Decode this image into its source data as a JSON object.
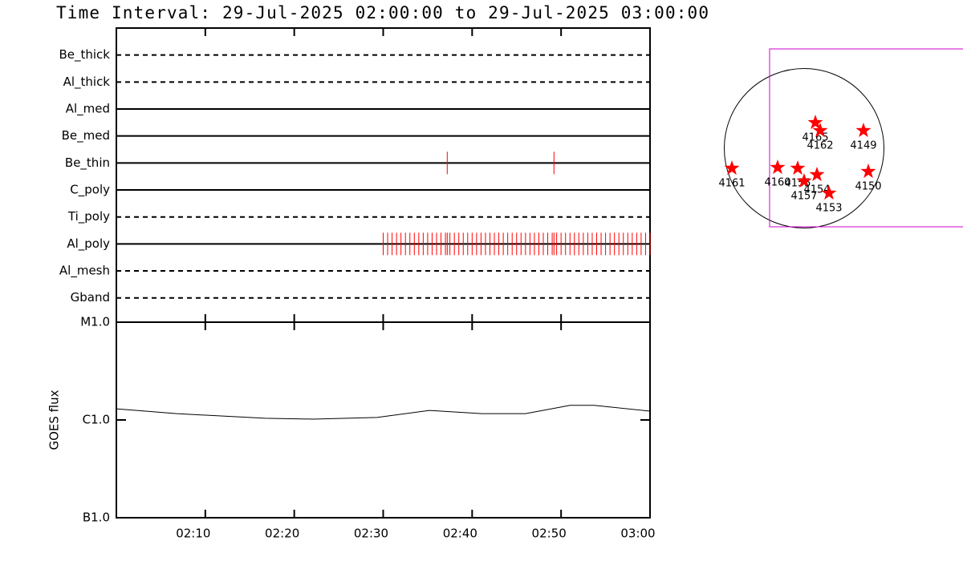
{
  "chart_data": [
    {
      "type": "event",
      "title": "Time Interval: 29-Jul-2025 02:00:00 to 29-Jul-2025 03:00:00",
      "categories": [
        "Be_thick",
        "Al_thick",
        "Al_med",
        "Be_med",
        "Be_thin",
        "C_poly",
        "Ti_poly",
        "Al_poly",
        "Al_mesh",
        "Gband"
      ],
      "line_styles": [
        "dashed",
        "dashed",
        "solid",
        "solid",
        "solid",
        "solid",
        "dashed",
        "solid",
        "dashed",
        "dashed"
      ],
      "color": "#ff0000",
      "xlim": [
        0,
        60
      ],
      "values": [
        [],
        [],
        [],
        [],
        [
          37.2,
          49.2
        ],
        [],
        [],
        [
          30,
          30.5,
          31,
          31.5,
          32,
          32.5,
          33,
          33.5,
          34,
          34.5,
          35,
          35.5,
          36,
          36.5,
          37,
          37.2,
          37.5,
          38,
          38.5,
          39,
          39.5,
          40,
          40.5,
          41,
          41.5,
          42,
          42.5,
          43,
          43.5,
          44,
          44.5,
          45,
          45.5,
          46,
          46.5,
          47,
          47.5,
          48,
          48.5,
          49,
          49.2,
          49.5,
          50,
          50.5,
          51,
          51.5,
          52,
          52.5,
          53,
          53.5,
          54,
          54.5,
          55,
          55.5,
          56,
          56.5,
          57,
          57.5,
          58,
          58.5,
          59,
          59.5,
          60
        ],
        [],
        []
      ]
    },
    {
      "type": "line",
      "ylabel": "GOES flux",
      "color": "#000000",
      "x": [
        0,
        6.8,
        16.7,
        22.1,
        29.3,
        35.2,
        41.1,
        46,
        51,
        53.7,
        60
      ],
      "values": [
        1.3e-06,
        1.16e-06,
        1.04e-06,
        1.02e-06,
        1.06e-06,
        1.25e-06,
        1.16e-06,
        1.16e-06,
        1.41e-06,
        1.41e-06,
        1.23e-06
      ],
      "xlim": [
        0,
        60
      ],
      "xticks": [
        {
          "value": 10,
          "label": "02:10"
        },
        {
          "value": 20,
          "label": "02:20"
        },
        {
          "value": 30,
          "label": "02:30"
        },
        {
          "value": 40,
          "label": "02:40"
        },
        {
          "value": 50,
          "label": "02:50"
        },
        {
          "value": 60,
          "label": "03:00"
        }
      ],
      "ylim": [
        1e-07,
        1e-05
      ],
      "log_scale": true,
      "yticks": [
        {
          "value": 1e-07,
          "label": "B1.0"
        },
        {
          "value": 1e-06,
          "label": "C1.0"
        },
        {
          "value": 1e-05,
          "label": "M1.0"
        }
      ]
    },
    {
      "type": "scatter",
      "color": "#ff0000",
      "labels": [
        "4165",
        "4162",
        "4149",
        "4161",
        "4160",
        "4155",
        "4157",
        "4154",
        "4153",
        "4150"
      ],
      "x": [
        134,
        191,
        706,
        -859,
        -315,
        -76,
        0,
        153,
        296,
        764
      ],
      "values": [
        305,
        210,
        210,
        -239,
        -229,
        -239,
        -391,
        -315,
        -535,
        -277
      ],
      "xlim": [
        -1050,
        1050
      ],
      "ylim": [
        -1050,
        1050
      ]
    }
  ]
}
